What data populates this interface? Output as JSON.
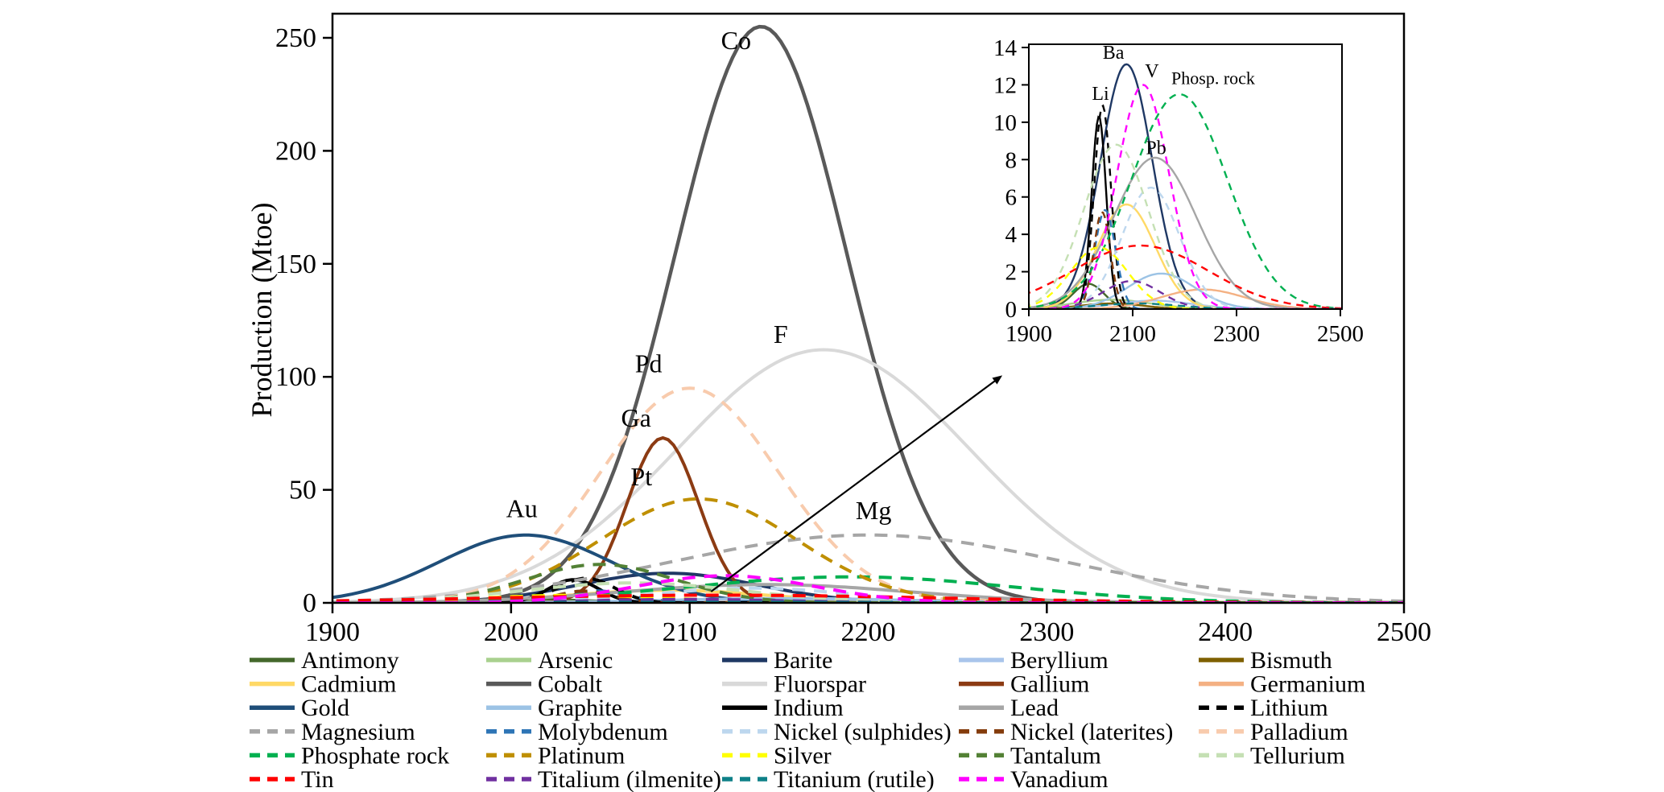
{
  "figure": {
    "background": "#ffffff",
    "description_visible_text_only": true
  },
  "chart_data": [
    {
      "id": "main",
      "type": "line",
      "title": "",
      "xlabel": "",
      "ylabel": "Production (Mtoe)",
      "xlim": [
        1900,
        2500
      ],
      "ylim": [
        0,
        260
      ],
      "xticks": [
        1900,
        2000,
        2100,
        2200,
        2300,
        2400,
        2500
      ],
      "yticks": [
        0,
        50,
        100,
        150,
        200,
        250
      ],
      "grid": false,
      "legend_position": "bottom",
      "series": [
        {
          "name": "Antimony",
          "color": "#44682c",
          "dash": false,
          "peak": 1.35,
          "peak_year": 2015,
          "sigma": 30
        },
        {
          "name": "Arsenic",
          "color": "#a9d18e",
          "dash": false,
          "peak": 0.5,
          "peak_year": 2060,
          "sigma": 75
        },
        {
          "name": "Barite",
          "color": "#1f3864",
          "dash": false,
          "peak": 13.1,
          "peak_year": 2088,
          "sigma": 50
        },
        {
          "name": "Beryllium",
          "color": "#a9c5eb",
          "dash": false,
          "peak": 0.45,
          "peak_year": 2140,
          "sigma": 75
        },
        {
          "name": "Bismuth",
          "color": "#7f6000",
          "dash": false,
          "peak": 0.3,
          "peak_year": 2060,
          "sigma": 60
        },
        {
          "name": "Cadmium",
          "color": "#ffd966",
          "dash": false,
          "peak": 5.6,
          "peak_year": 2088,
          "sigma": 55
        },
        {
          "name": "Cobalt",
          "color": "#595959",
          "dash": false,
          "peak": 255,
          "peak_year": 2140,
          "sigma": 48
        },
        {
          "name": "Fluorspar",
          "color": "#d9d9d9",
          "dash": false,
          "peak": 112,
          "peak_year": 2175,
          "sigma": 82
        },
        {
          "name": "Gallium",
          "color": "#8c3b13",
          "dash": false,
          "peak": 73,
          "peak_year": 2085,
          "sigma": 20
        },
        {
          "name": "Germanium",
          "color": "#f4b183",
          "dash": false,
          "peak": 1.05,
          "peak_year": 2235,
          "sigma": 80
        },
        {
          "name": "Gold",
          "color": "#1f4e79",
          "dash": false,
          "peak": 30,
          "peak_year": 2008,
          "sigma": 48
        },
        {
          "name": "Graphite",
          "color": "#9cc3e5",
          "dash": false,
          "peak": 1.9,
          "peak_year": 2155,
          "sigma": 65
        },
        {
          "name": "Indium",
          "color": "#000000",
          "dash": false,
          "peak": 10.3,
          "peak_year": 2035,
          "sigma": 14
        },
        {
          "name": "Lead",
          "color": "#a6a6a6",
          "dash": false,
          "peak": 8.1,
          "peak_year": 2143,
          "sigma": 80
        },
        {
          "name": "Lithium",
          "color": "#000000",
          "dash": true,
          "peak": 10.9,
          "peak_year": 2042,
          "sigma": 16
        },
        {
          "name": "Magnesium",
          "color": "#a6a6a6",
          "dash": true,
          "peak": 30,
          "peak_year": 2200,
          "sigma": 110
        },
        {
          "name": "Molybdenum",
          "color": "#2e75b6",
          "dash": true,
          "peak": 5.3,
          "peak_year": 2047,
          "sigma": 20
        },
        {
          "name": "Nickel (sulphides)",
          "color": "#bdd7ee",
          "dash": true,
          "peak": 6.5,
          "peak_year": 2135,
          "sigma": 55
        },
        {
          "name": "Nickel (laterites)",
          "color": "#843c0c",
          "dash": true,
          "peak": 5.2,
          "peak_year": 2041,
          "sigma": 16
        },
        {
          "name": "Palladium",
          "color": "#f8cbad",
          "dash": true,
          "peak": 95,
          "peak_year": 2100,
          "sigma": 50
        },
        {
          "name": "Phosphate rock",
          "color": "#00b050",
          "dash": true,
          "peak": 11.5,
          "peak_year": 2190,
          "sigma": 92
        },
        {
          "name": "Platinum",
          "color": "#bf8f00",
          "dash": true,
          "peak": 46,
          "peak_year": 2105,
          "sigma": 55
        },
        {
          "name": "Silver",
          "color": "#ffff00",
          "dash": true,
          "peak": 3.3,
          "peak_year": 2035,
          "sigma": 55
        },
        {
          "name": "Tantalum",
          "color": "#538135",
          "dash": true,
          "peak": 17,
          "peak_year": 2050,
          "sigma": 42
        },
        {
          "name": "Tellurium",
          "color": "#c5e0b4",
          "dash": true,
          "peak": 8.8,
          "peak_year": 2068,
          "sigma": 62
        },
        {
          "name": "Tin",
          "color": "#ff0000",
          "dash": true,
          "peak": 3.4,
          "peak_year": 2115,
          "sigma": 130
        },
        {
          "name": "Titalium (ilmenite)",
          "color": "#7030a0",
          "dash": true,
          "peak": 1.5,
          "peak_year": 2098,
          "sigma": 55
        },
        {
          "name": "Titanium (rutile)",
          "color": "#0e8088",
          "dash": true,
          "peak": 0.3,
          "peak_year": 2110,
          "sigma": 80
        },
        {
          "name": "Vanadium",
          "color": "#ff00ff",
          "dash": true,
          "peak": 12,
          "peak_year": 2120,
          "sigma": 50
        }
      ],
      "annotations": [
        {
          "text": "Co",
          "year": 2126,
          "value": 245
        },
        {
          "text": "F",
          "year": 2151,
          "value": 115
        },
        {
          "text": "Pd",
          "year": 2077,
          "value": 102
        },
        {
          "text": "Ga",
          "year": 2070,
          "value": 78
        },
        {
          "text": "Pt",
          "year": 2073,
          "value": 52
        },
        {
          "text": "Au",
          "year": 2006,
          "value": 38
        },
        {
          "text": "Mg",
          "year": 2203,
          "value": 37
        }
      ],
      "arrow_to_inset": {
        "from_year": 2112,
        "from_value": 5,
        "to_year": 2274,
        "to_value": 100
      }
    },
    {
      "id": "inset",
      "type": "line",
      "note": "zoomed view of the same series with peaks below 14 Mtoe",
      "xlim": [
        1900,
        2500
      ],
      "ylim": [
        0,
        14
      ],
      "xticks": [
        1900,
        2100,
        2300,
        2500
      ],
      "yticks": [
        0,
        2,
        4,
        6,
        8,
        10,
        12,
        14
      ],
      "grid": false,
      "max_peak_shown": 14,
      "annotations": [
        {
          "text": "Ba",
          "year": 2063,
          "value": 13.4
        },
        {
          "text": "V",
          "year": 2137,
          "value": 12.4
        },
        {
          "text": "Phosp. rock",
          "year": 2255,
          "value": 12.05
        },
        {
          "text": "Li",
          "year": 2038,
          "value": 11.2
        },
        {
          "text": "Pb",
          "year": 2145,
          "value": 8.3
        }
      ]
    }
  ],
  "legend": {
    "columns": 5,
    "items_in_reading_order": [
      "Antimony",
      "Arsenic",
      "Barite",
      "Beryllium",
      "Bismuth",
      "Cadmium",
      "Cobalt",
      "Fluorspar",
      "Gallium",
      "Germanium",
      "Gold",
      "Graphite",
      "Indium",
      "Lead",
      "Lithium",
      "Magnesium",
      "Molybdenum",
      "Nickel (sulphides)",
      "Nickel (laterites)",
      "Palladium",
      "Phosphate rock",
      "Platinum",
      "Silver",
      "Tantalum",
      "Tellurium",
      "Tin",
      "Titalium (ilmenite)",
      "Titanium (rutile)",
      "Vanadium"
    ]
  }
}
